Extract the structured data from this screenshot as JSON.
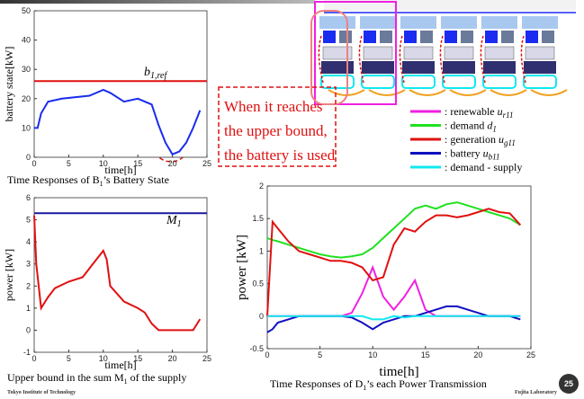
{
  "chart_data": [
    {
      "type": "line",
      "ylabel": "battery state[kW]",
      "xlabel": "time[h]",
      "xlim": [
        0,
        25
      ],
      "xticks": [
        0,
        5,
        10,
        15,
        20,
        25
      ],
      "ylim": [
        0,
        50
      ],
      "yticks": [
        0,
        10,
        20,
        30,
        40,
        50
      ],
      "x": [
        0,
        0.5,
        1,
        2,
        4,
        8,
        10,
        11,
        13,
        15,
        17,
        18,
        19,
        20,
        21,
        22,
        23,
        24
      ],
      "series": [
        {
          "color": "#1a2cf0",
          "values": [
            10,
            10,
            15,
            19,
            20,
            21,
            23,
            22,
            19,
            20,
            18,
            11,
            5,
            1,
            2,
            5,
            10,
            16
          ]
        }
      ],
      "reference_line": {
        "value": 26,
        "color": "#e01010",
        "label": "b",
        "label_sub": "1,ref"
      },
      "caption": {
        "pre": "Time Responses of B",
        "sub": "1",
        "post": "’s Battery State"
      }
    },
    {
      "type": "line",
      "ylabel": "power [kW]",
      "xlabel": "time[h]",
      "xlim": [
        0,
        25
      ],
      "xticks": [
        0,
        5,
        10,
        15,
        20,
        25
      ],
      "ylim": [
        -1,
        6
      ],
      "yticks": [
        -1,
        0,
        1,
        2,
        3,
        4,
        5,
        6
      ],
      "x": [
        0,
        0.3,
        1,
        2,
        3,
        5,
        7,
        9,
        10,
        10.5,
        11,
        13,
        15,
        16,
        17,
        18,
        20,
        22,
        23,
        24
      ],
      "series": [
        {
          "color": "#e01010",
          "values": [
            5.2,
            3,
            1,
            1.5,
            1.9,
            2.2,
            2.4,
            3.2,
            3.6,
            3.2,
            2,
            1.3,
            1,
            0.8,
            0.3,
            0,
            0,
            0,
            0,
            0.5
          ]
        }
      ],
      "reference_line": {
        "value": 5.3,
        "color": "#1a1aa0",
        "label": "M",
        "label_sub": "1"
      },
      "caption": {
        "pre": "Upper bound in the sum M",
        "sub": "1",
        "post": " of the supply"
      }
    },
    {
      "type": "line",
      "ylabel": "power [kW]",
      "xlabel": "time[h]",
      "xlim": [
        0,
        25
      ],
      "xticks": [
        0,
        5,
        10,
        15,
        20,
        25
      ],
      "ylim": [
        -0.5,
        2
      ],
      "yticks": [
        -0.5,
        0,
        0.5,
        1,
        1.5,
        2
      ],
      "x": [
        0,
        0.5,
        1,
        2,
        3,
        4,
        5,
        6,
        7,
        8,
        9,
        10,
        11,
        12,
        13,
        14,
        15,
        16,
        17,
        18,
        19,
        20,
        21,
        22,
        23,
        24
      ],
      "series": [
        {
          "name": ": renewable ",
          "symbol": "u",
          "symbol_sub": "r11",
          "color": "#f020e0",
          "values": [
            0,
            0,
            0,
            0,
            0,
            0,
            0,
            0,
            0,
            0.05,
            0.35,
            0.75,
            0.3,
            0.1,
            0.3,
            0.55,
            0.1,
            0,
            0,
            0,
            0,
            0,
            0,
            0,
            0,
            0
          ]
        },
        {
          "name": ": demand ",
          "symbol": "d",
          "symbol_sub": "1",
          "color": "#20e020",
          "values": [
            1.2,
            1.17,
            1.15,
            1.1,
            1.05,
            1.0,
            0.95,
            0.92,
            0.9,
            0.92,
            0.95,
            1.05,
            1.2,
            1.35,
            1.5,
            1.65,
            1.7,
            1.65,
            1.72,
            1.75,
            1.7,
            1.65,
            1.6,
            1.55,
            1.5,
            1.4
          ]
        },
        {
          "name": ": generation ",
          "symbol": "u",
          "symbol_sub": "g11",
          "color": "#e01010",
          "values": [
            0,
            1.45,
            1.35,
            1.15,
            1.0,
            0.95,
            0.9,
            0.85,
            0.85,
            0.82,
            0.75,
            0.55,
            0.6,
            1.1,
            1.35,
            1.3,
            1.45,
            1.55,
            1.55,
            1.52,
            1.55,
            1.6,
            1.65,
            1.6,
            1.58,
            1.4
          ]
        },
        {
          "name": ": battery ",
          "symbol": "u",
          "symbol_sub": "b11",
          "color": "#1010c0",
          "values": [
            -0.25,
            -0.2,
            -0.1,
            -0.05,
            0,
            0,
            0,
            0,
            0,
            -0.02,
            -0.1,
            -0.2,
            -0.1,
            -0.05,
            0,
            0,
            0.05,
            0.1,
            0.15,
            0.15,
            0.1,
            0.05,
            0,
            0,
            0,
            -0.05
          ]
        },
        {
          "name": ": demand - supply",
          "color": "#10e8f0",
          "values": [
            0,
            0,
            0,
            0,
            0,
            0,
            0,
            0,
            0,
            0,
            0,
            -0.05,
            -0.05,
            0,
            -0.02,
            0,
            0,
            0,
            0,
            0,
            0,
            0,
            0,
            0,
            0,
            0
          ]
        }
      ],
      "caption": {
        "pre": "Time Responses of  D",
        "sub": "1",
        "post": "’s each Power Transmission"
      }
    }
  ],
  "callout": [
    "When it reaches",
    "the upper bound,",
    "the battery is used"
  ],
  "footer": {
    "left": "Tokyo Institute of Technology",
    "right": "Fujita Laboratory",
    "page": "25"
  }
}
